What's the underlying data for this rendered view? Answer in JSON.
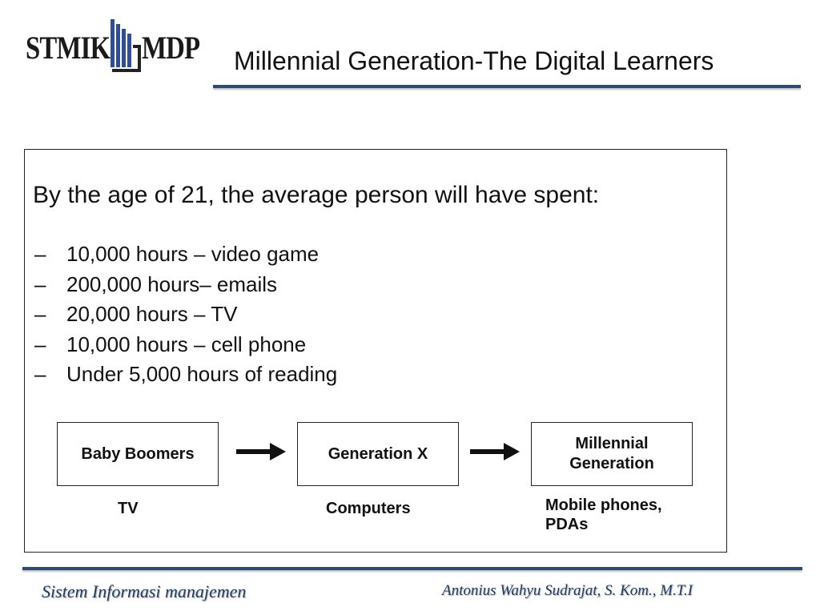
{
  "logo": {
    "left_text": "STMIK",
    "right_text": "MDP"
  },
  "title": "Millennial Generation-The Digital Learners",
  "content": {
    "intro": "By the age of 21, the average person will have spent:",
    "bullets": [
      "10,000 hours – video game",
      "200,000 hours– emails",
      "20,000 hours – TV",
      "10,000 hours – cell phone",
      "Under 5,000 hours of reading"
    ],
    "generations": [
      {
        "label": "Baby Boomers",
        "tech": "TV"
      },
      {
        "label": "Generation X",
        "tech": "Computers"
      },
      {
        "label": "Millennial\nGeneration",
        "tech": "Mobile phones,\nPDAs"
      }
    ]
  },
  "footer": {
    "left": "Sistem Informasi manajemen",
    "right": "Antonius Wahyu Sudrajat, S. Kom., M.T.I"
  },
  "colors": {
    "accent": "#2c4a72",
    "footer_text": "#1f3b66",
    "logo_mark": "#2e4f95"
  }
}
